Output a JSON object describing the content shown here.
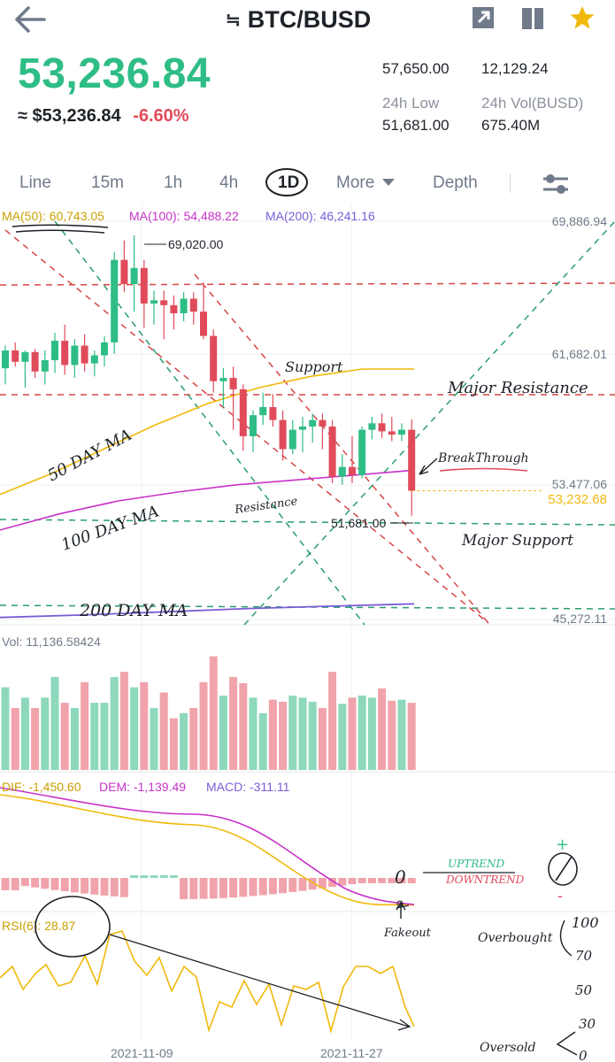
{
  "header": {
    "title": "BTC/BUSD",
    "swap_symbol": "≒"
  },
  "ticker": {
    "price": "53,236.84",
    "fiat_equiv": "≈ $53,236.84",
    "change_pct": "-6.60%",
    "high_24h_value": "57,650.00",
    "vol_btc_value": "12,129.24",
    "low_24h_label": "24h Low",
    "low_24h_value": "51,681.00",
    "vol_busd_label": "24h Vol(BUSD)",
    "vol_busd_value": "675.40M"
  },
  "tabs": [
    "Line",
    "15m",
    "1h",
    "4h",
    "1D",
    "More",
    "Depth"
  ],
  "active_tab": "1D",
  "ma_legend": {
    "ma50": "MA(50): 60,743.05",
    "ma100": "MA(100): 54,488.22",
    "ma200": "MA(200): 46,241.16"
  },
  "price_axis": [
    "69,886.94",
    "61,682.01",
    "53,477.06",
    "45,272.11"
  ],
  "current_price_tag": "53,232.68",
  "high_marker": "69,020.00",
  "low_marker": "51,681.00",
  "volume_label": "Vol: 11,136.58424",
  "macd_labels": {
    "dif": "DIF: -1,450.60",
    "dem": "DEM: -1,139.49",
    "macd": "MACD: -311.11"
  },
  "rsi_label": "RSI(6): 28.87",
  "dates": [
    "2021-11-09",
    "2021-11-27"
  ],
  "annotations": {
    "support": "Support",
    "major_resistance": "Major Resistance",
    "breakthrough": "BreakThrough",
    "fifty_day": "50 DAY MA",
    "hundred_day": "100 DAY MA",
    "resistance": "Resistance",
    "major_support": "Major Support",
    "two_hundred_day": "200 DAY MA",
    "uptrend": "UPTREND",
    "downtrend": "DOWNTREND",
    "fakeout": "Fakeout",
    "overbought": "Overbought",
    "oversold": "Oversold",
    "zero": "0",
    "plus": "+",
    "minus": "-",
    "scale_100": "100",
    "scale_70": "70",
    "scale_50": "50",
    "scale_30": "30",
    "scale_0": "0"
  },
  "colors": {
    "up": "#2ebd85",
    "down": "#e04b5a",
    "ma50": "#f0b90b",
    "ma100": "#c832c8",
    "ma200": "#7b5cd6"
  },
  "chart_data": {
    "type": "candlestick",
    "ylim": [
      45272.11,
      69886.94
    ],
    "candles": [
      {
        "o": 60800,
        "h": 62200,
        "l": 59800,
        "c": 61900
      },
      {
        "o": 61900,
        "h": 62400,
        "l": 60900,
        "c": 61200
      },
      {
        "o": 61200,
        "h": 61900,
        "l": 59600,
        "c": 61800
      },
      {
        "o": 61800,
        "h": 62000,
        "l": 60200,
        "c": 60600
      },
      {
        "o": 60600,
        "h": 61900,
        "l": 59800,
        "c": 61300
      },
      {
        "o": 61300,
        "h": 63000,
        "l": 60500,
        "c": 62500
      },
      {
        "o": 62500,
        "h": 63500,
        "l": 60400,
        "c": 61000
      },
      {
        "o": 61000,
        "h": 62600,
        "l": 60200,
        "c": 62200
      },
      {
        "o": 62200,
        "h": 62900,
        "l": 60600,
        "c": 61100
      },
      {
        "o": 61100,
        "h": 61900,
        "l": 60300,
        "c": 61600
      },
      {
        "o": 61600,
        "h": 62800,
        "l": 60900,
        "c": 62400
      },
      {
        "o": 62400,
        "h": 68000,
        "l": 61700,
        "c": 67500
      },
      {
        "o": 67500,
        "h": 68700,
        "l": 65500,
        "c": 66000
      },
      {
        "o": 66000,
        "h": 69020,
        "l": 64300,
        "c": 67000
      },
      {
        "o": 67000,
        "h": 67500,
        "l": 63300,
        "c": 64800
      },
      {
        "o": 64800,
        "h": 65600,
        "l": 63500,
        "c": 65000
      },
      {
        "o": 65000,
        "h": 65600,
        "l": 62600,
        "c": 64700
      },
      {
        "o": 64700,
        "h": 65300,
        "l": 63200,
        "c": 64200
      },
      {
        "o": 64200,
        "h": 65500,
        "l": 63700,
        "c": 65100
      },
      {
        "o": 65100,
        "h": 65500,
        "l": 63500,
        "c": 64300
      },
      {
        "o": 64300,
        "h": 66100,
        "l": 62600,
        "c": 62800
      },
      {
        "o": 62800,
        "h": 63200,
        "l": 59300,
        "c": 60000
      },
      {
        "o": 60000,
        "h": 60800,
        "l": 58400,
        "c": 60200
      },
      {
        "o": 60200,
        "h": 60900,
        "l": 57000,
        "c": 59500
      },
      {
        "o": 59500,
        "h": 59800,
        "l": 55700,
        "c": 56600
      },
      {
        "o": 56600,
        "h": 58200,
        "l": 55600,
        "c": 57900
      },
      {
        "o": 57900,
        "h": 59300,
        "l": 57300,
        "c": 58400
      },
      {
        "o": 58400,
        "h": 59200,
        "l": 57200,
        "c": 57600
      },
      {
        "o": 57600,
        "h": 58200,
        "l": 55100,
        "c": 55800
      },
      {
        "o": 55800,
        "h": 57600,
        "l": 55500,
        "c": 57000
      },
      {
        "o": 57000,
        "h": 57800,
        "l": 55600,
        "c": 57200
      },
      {
        "o": 57200,
        "h": 58000,
        "l": 56200,
        "c": 57600
      },
      {
        "o": 57600,
        "h": 58000,
        "l": 55800,
        "c": 57200
      },
      {
        "o": 57200,
        "h": 57600,
        "l": 53700,
        "c": 54100
      },
      {
        "o": 54100,
        "h": 55500,
        "l": 53600,
        "c": 54700
      },
      {
        "o": 54700,
        "h": 56600,
        "l": 53700,
        "c": 54200
      },
      {
        "o": 54200,
        "h": 57200,
        "l": 54000,
        "c": 57000
      },
      {
        "o": 57000,
        "h": 57800,
        "l": 56400,
        "c": 57400
      },
      {
        "o": 57400,
        "h": 58000,
        "l": 56500,
        "c": 56900
      },
      {
        "o": 56900,
        "h": 57800,
        "l": 56300,
        "c": 56700
      },
      {
        "o": 56700,
        "h": 57400,
        "l": 56300,
        "c": 57000
      },
      {
        "o": 57000,
        "h": 57650,
        "l": 51681,
        "c": 53232.68
      }
    ],
    "ma50": [
      53000,
      54300,
      55800,
      57300,
      58600,
      59600,
      60300,
      60750,
      60750
    ],
    "ma100": [
      50800,
      51800,
      52600,
      53150,
      53600,
      53900,
      54200,
      54500
    ],
    "ma200": [
      45400,
      45550,
      45750,
      45950,
      46100,
      46241
    ],
    "volume_ylim": [
      0,
      11136.58424
    ],
    "volume": [
      8000,
      6000,
      7000,
      6000,
      7000,
      9000,
      6500,
      6000,
      8500,
      6500,
      6500,
      9000,
      9500,
      8000,
      8500,
      6000,
      7500,
      5000,
      5500,
      6000,
      8500,
      11000,
      7200,
      9000,
      8400,
      7000,
      5500,
      6800,
      6600,
      7200,
      7000,
      6600,
      6000,
      9500,
      6400,
      7000,
      7200,
      7000,
      7900,
      6700,
      6800,
      6500
    ]
  }
}
